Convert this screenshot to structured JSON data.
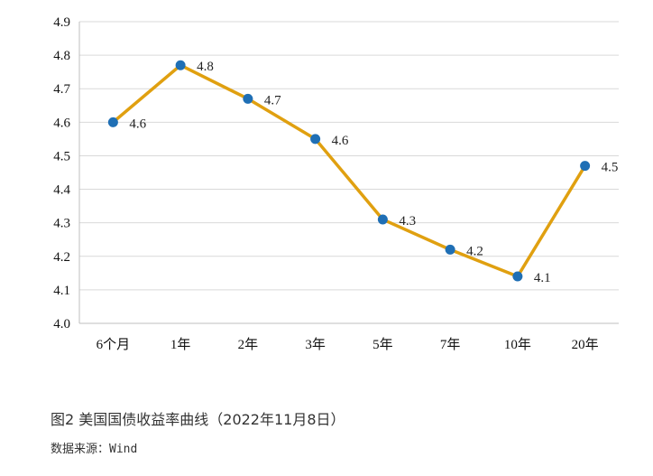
{
  "chart_data": {
    "type": "line",
    "categories": [
      "6个月",
      "1年",
      "2年",
      "3年",
      "5年",
      "7年",
      "10年",
      "20年"
    ],
    "series": [
      {
        "values": [
          4.6,
          4.77,
          4.67,
          4.55,
          4.31,
          4.22,
          4.14,
          4.47
        ],
        "data_labels": [
          "4.6",
          "4.8",
          "4.7",
          "4.6",
          "4.3",
          "4.2",
          "4.1",
          "4.5"
        ],
        "color": "#E0A010",
        "marker_color": "#1F6FB5"
      }
    ],
    "y_ticks": [
      "4.0",
      "4.1",
      "4.2",
      "4.3",
      "4.4",
      "4.5",
      "4.6",
      "4.7",
      "4.8",
      "4.9"
    ],
    "ylim": [
      4.0,
      4.9
    ],
    "grid": true,
    "legend": "none"
  },
  "caption": "图2 美国国债收益率曲线（2022年11月8日）",
  "source": "数据来源：Wind",
  "colors": {
    "grid": "#D9D9D9",
    "axis": "#BFBFBF"
  }
}
